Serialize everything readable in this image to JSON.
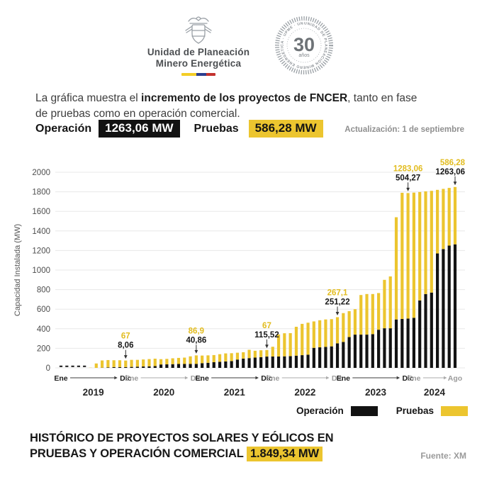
{
  "header": {
    "org_name_line1": "Unidad de Planeación",
    "org_name_line2": "Minero Energética",
    "seal": {
      "big_number": "30",
      "small_word": "años",
      "ring_text": "UNIDAD DE PLANEACIÓN MINERO ENERGÉTICA · UPME · UNIDAD DE PLANEACIÓN"
    }
  },
  "intro": {
    "pre": "La gráfica muestra el ",
    "bold": "incremento de los proyectos de FNCER",
    "post": ", tanto en fase de pruebas como en operación comercial."
  },
  "stats": {
    "operacion_label": "Operación",
    "operacion_value": "1263,06 MW",
    "pruebas_label": "Pruebas",
    "pruebas_value": "586,28 MW",
    "update_note": "Actualización: 1 de septiembre"
  },
  "legend": {
    "operacion": "Operación",
    "pruebas": "Pruebas"
  },
  "footer": {
    "title_line1": "HISTÓRICO DE PROYECTOS SOLARES Y EÓLICOS EN",
    "title_line2": "PRUEBAS Y OPERACIÓN COMERCIAL",
    "highlight": "1.849,34 MW",
    "source": "Fuente: XM"
  },
  "colors": {
    "yellow": "#ECC52F",
    "black": "#121212",
    "yellow_text": "#E2BC1F",
    "gray_text": "#8f8f8f"
  },
  "chart_data": {
    "type": "bar",
    "stacked": true,
    "ylabel": "Capacidad Instalada (MW)",
    "ylim": [
      0,
      2000
    ],
    "ytick_step": 200,
    "x_start": "Ene 2019",
    "x_end": "Ago 2024",
    "grid": true,
    "legend_position": "bottom-right",
    "groups": [
      {
        "year": "2019",
        "months": 12,
        "first": "Ene",
        "last": "Dic",
        "emphasis": true
      },
      {
        "year": "2020",
        "months": 12,
        "first": "Ene",
        "last": "Dic",
        "emphasis": false
      },
      {
        "year": "2021",
        "months": 12,
        "first": "Ene",
        "last": "Dic",
        "emphasis": true
      },
      {
        "year": "2022",
        "months": 12,
        "first": "Ene",
        "last": "Dic",
        "emphasis": false
      },
      {
        "year": "2023",
        "months": 12,
        "first": "Ene",
        "last": "Dic",
        "emphasis": true
      },
      {
        "year": "2024",
        "months": 8,
        "first": "Ene",
        "last": "Ago",
        "emphasis": false
      }
    ],
    "series": [
      {
        "name": "Operación",
        "color": "#121212",
        "values": [
          0,
          0,
          0,
          0,
          0,
          0,
          0,
          2,
          5,
          8,
          8,
          8.06,
          10,
          12,
          14,
          16,
          18,
          35,
          36,
          38,
          40,
          40,
          40,
          40.86,
          48,
          52,
          58,
          62,
          66,
          70,
          85,
          95,
          100,
          105,
          110,
          115.52,
          116,
          116,
          118,
          120,
          125,
          130,
          135,
          205,
          210,
          215,
          220,
          251.22,
          265,
          315,
          340,
          340,
          340,
          345,
          390,
          405,
          405,
          495,
          500,
          504.27,
          512,
          690,
          755,
          770,
          1170,
          1215,
          1250,
          1263.06
        ]
      },
      {
        "name": "Pruebas",
        "color": "#ECC52F",
        "values": [
          0,
          0,
          0,
          0,
          0,
          2,
          45,
          74,
          75,
          70,
          70,
          67,
          72,
          70,
          72,
          74,
          76,
          54,
          56,
          60,
          62,
          65,
          78,
          86.9,
          78,
          76,
          73,
          78,
          82,
          80,
          70,
          65,
          85,
          70,
          70,
          67,
          100,
          226,
          236,
          235,
          295,
          320,
          327,
          270,
          277,
          280,
          278,
          267.1,
          295,
          265,
          260,
          405,
          415,
          410,
          375,
          495,
          530,
          1045,
          1290,
          1283.06,
          1280,
          1108,
          1050,
          1040,
          650,
          615,
          590,
          586.28
        ]
      }
    ],
    "annotations": [
      {
        "month_index": 11,
        "pruebas": "67",
        "operacion": "8,06"
      },
      {
        "month_index": 23,
        "pruebas": "86,9",
        "operacion": "40,86"
      },
      {
        "month_index": 35,
        "pruebas": "67",
        "operacion": "115,52"
      },
      {
        "month_index": 47,
        "pruebas": "267,1",
        "operacion": "251,22"
      },
      {
        "month_index": 59,
        "pruebas": "1283,06",
        "operacion": "504,27"
      },
      {
        "month_index": 67,
        "pruebas": "586,28",
        "operacion": "1263,06",
        "align": "right"
      }
    ]
  }
}
